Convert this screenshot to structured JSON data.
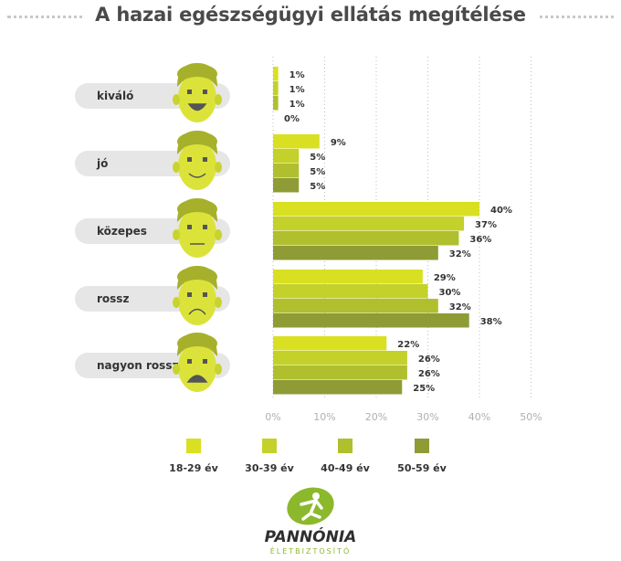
{
  "chart_data": {
    "type": "bar",
    "orientation": "horizontal",
    "title": "A hazai egészségügyi ellátás megítélése",
    "categories": [
      "kiváló",
      "jó",
      "közepes",
      "rossz",
      "nagyon rossz"
    ],
    "series": [
      {
        "name": "18-29 év",
        "color": "#d9e021",
        "values": [
          1,
          9,
          40,
          29,
          22
        ]
      },
      {
        "name": "30-39 év",
        "color": "#c3d12a",
        "values": [
          1,
          5,
          37,
          30,
          26
        ]
      },
      {
        "name": "40-49 év",
        "color": "#b0bf2e",
        "values": [
          1,
          5,
          36,
          32,
          26
        ]
      },
      {
        "name": "50-59 év",
        "color": "#8f9b35",
        "values": [
          0,
          5,
          32,
          38,
          25
        ]
      }
    ],
    "value_suffix": "%",
    "xlim": [
      0,
      50
    ],
    "xticks": [
      "0%",
      "10%",
      "20%",
      "30%",
      "40%",
      "50%"
    ],
    "grid": "vertical dotted",
    "legend_position": "bottom",
    "face_icons": [
      "smiling-face-icon",
      "smiling-face-icon",
      "neutral-face-icon",
      "frowning-face-icon",
      "moustache-frowning-face-icon"
    ]
  },
  "logo": {
    "name": "PANNÓNIA",
    "subtitle": "ÉLETBIZTOSÍTÓ",
    "icon": "running-man-logo-icon",
    "color": "#8cb82b"
  }
}
